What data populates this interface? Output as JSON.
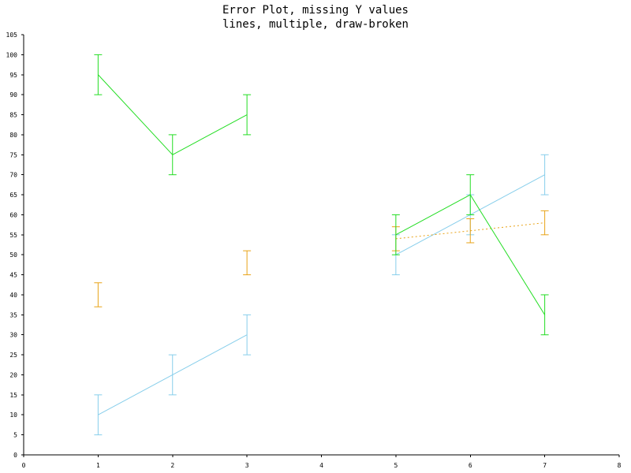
{
  "chart_data": {
    "type": "line",
    "title": "Error Plot, missing Y values",
    "subtitle": "lines, multiple, draw-broken",
    "xlabel": "",
    "ylabel": "",
    "xlim": [
      0,
      8
    ],
    "ylim": [
      0,
      105
    ],
    "x_ticks": [
      0,
      1,
      2,
      3,
      4,
      5,
      6,
      7,
      8
    ],
    "y_ticks": [
      0,
      5,
      10,
      15,
      20,
      25,
      30,
      35,
      40,
      45,
      50,
      55,
      60,
      65,
      70,
      75,
      80,
      85,
      90,
      95,
      100,
      105
    ],
    "grid": false,
    "series": [
      {
        "color": "#87ceeb",
        "line_style": "solid",
        "points": [
          {
            "x": 1,
            "y": 10,
            "err": 5
          },
          {
            "x": 2,
            "y": 20,
            "err": 5
          },
          {
            "x": 3,
            "y": 30,
            "err": 5
          },
          {
            "x": 4,
            "y": null,
            "err": null
          },
          {
            "x": 5,
            "y": 50,
            "err": 5
          },
          {
            "x": 6,
            "y": 60,
            "err": 5
          },
          {
            "x": 7,
            "y": 70,
            "err": 5
          }
        ]
      },
      {
        "color": "#e8a317",
        "line_style": "dotted",
        "points": [
          {
            "x": 1,
            "y": 40,
            "err": 3
          },
          {
            "x": 2,
            "y": null,
            "err": null
          },
          {
            "x": 3,
            "y": 48,
            "err": 3
          },
          {
            "x": 4,
            "y": null,
            "err": null
          },
          {
            "x": 5,
            "y": 54,
            "err": 3
          },
          {
            "x": 6,
            "y": 56,
            "err": 3
          },
          {
            "x": 7,
            "y": 58,
            "err": 3
          }
        ]
      },
      {
        "color": "#22dd22",
        "line_style": "solid",
        "points": [
          {
            "x": 1,
            "y": 95,
            "err": 5
          },
          {
            "x": 2,
            "y": 75,
            "err": 5
          },
          {
            "x": 3,
            "y": 85,
            "err": 5
          },
          {
            "x": 4,
            "y": null,
            "err": null
          },
          {
            "x": 5,
            "y": 55,
            "err": 5
          },
          {
            "x": 6,
            "y": 65,
            "err": 5
          },
          {
            "x": 7,
            "y": 35,
            "err": 5
          }
        ]
      }
    ]
  }
}
